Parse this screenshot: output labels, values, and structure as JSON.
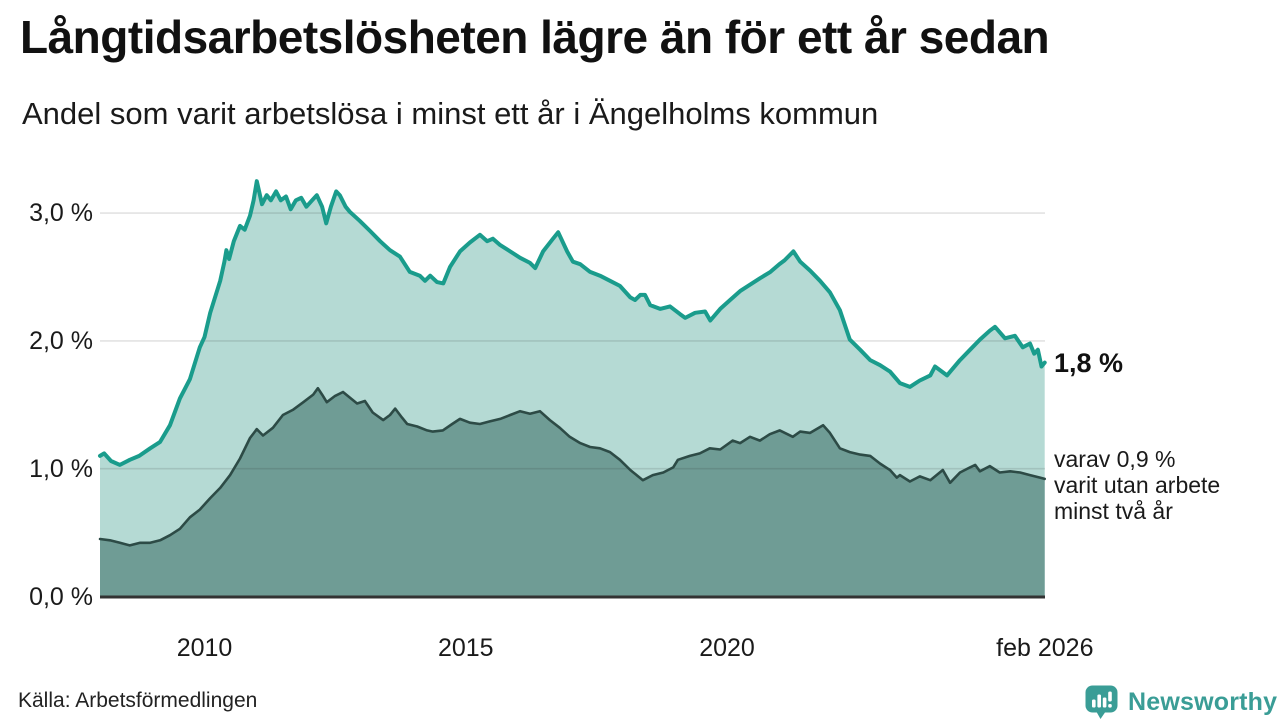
{
  "chart_data": {
    "type": "area",
    "title": "Långtidsarbetslösheten lägre än för ett år sedan",
    "subtitle": "Andel som varit arbetslösa i minst ett år i Ängelholms kommun",
    "source": "Källa: Arbetsförmedlingen",
    "xlabel": "",
    "ylabel": "",
    "grid": true,
    "xlim": [
      2008.0,
      2026.083
    ],
    "ylim": [
      0,
      3.4
    ],
    "x_ticks": [
      {
        "label": "2010",
        "year": 2010
      },
      {
        "label": "2015",
        "year": 2015
      },
      {
        "label": "2020",
        "year": 2020
      },
      {
        "label": "feb 2026",
        "year": 2026.083
      }
    ],
    "y_ticks": [
      {
        "label": "0,0 %",
        "value": 0
      },
      {
        "label": "1,0 %",
        "value": 1
      },
      {
        "label": "2,0 %",
        "value": 2
      },
      {
        "label": "3,0 %",
        "value": 3
      }
    ],
    "annotations": {
      "end_label": "1,8 %",
      "sub_label_lines": [
        "varav 0,9 %",
        "varit utan arbete",
        "minst två år"
      ]
    },
    "series": [
      {
        "name": "Andel arbetslösa minst ett år",
        "line_color": "#1a9c8c",
        "fill_color": "#b5dad4",
        "end_value": "1,8 %",
        "points": [
          [
            2008.0,
            1.1
          ],
          [
            2008.08,
            1.12
          ],
          [
            2008.21,
            1.06
          ],
          [
            2008.38,
            1.03
          ],
          [
            2008.57,
            1.07
          ],
          [
            2008.75,
            1.1
          ],
          [
            2008.96,
            1.16
          ],
          [
            2009.15,
            1.21
          ],
          [
            2009.34,
            1.34
          ],
          [
            2009.53,
            1.55
          ],
          [
            2009.72,
            1.7
          ],
          [
            2009.91,
            1.95
          ],
          [
            2010.0,
            2.03
          ],
          [
            2010.11,
            2.22
          ],
          [
            2010.3,
            2.47
          ],
          [
            2010.38,
            2.62
          ],
          [
            2010.42,
            2.71
          ],
          [
            2010.47,
            2.64
          ],
          [
            2010.56,
            2.78
          ],
          [
            2010.68,
            2.9
          ],
          [
            2010.77,
            2.87
          ],
          [
            2010.87,
            2.98
          ],
          [
            2010.94,
            3.1
          ],
          [
            2011.0,
            3.25
          ],
          [
            2011.1,
            3.07
          ],
          [
            2011.19,
            3.14
          ],
          [
            2011.27,
            3.1
          ],
          [
            2011.37,
            3.17
          ],
          [
            2011.46,
            3.1
          ],
          [
            2011.56,
            3.13
          ],
          [
            2011.65,
            3.03
          ],
          [
            2011.75,
            3.1
          ],
          [
            2011.85,
            3.12
          ],
          [
            2011.95,
            3.05
          ],
          [
            2012.06,
            3.1
          ],
          [
            2012.15,
            3.14
          ],
          [
            2012.25,
            3.05
          ],
          [
            2012.33,
            2.92
          ],
          [
            2012.42,
            3.05
          ],
          [
            2012.52,
            3.17
          ],
          [
            2012.59,
            3.14
          ],
          [
            2012.7,
            3.05
          ],
          [
            2012.78,
            3.01
          ],
          [
            2012.97,
            2.94
          ],
          [
            2013.17,
            2.86
          ],
          [
            2013.36,
            2.78
          ],
          [
            2013.55,
            2.71
          ],
          [
            2013.74,
            2.66
          ],
          [
            2013.93,
            2.54
          ],
          [
            2014.12,
            2.51
          ],
          [
            2014.22,
            2.47
          ],
          [
            2014.32,
            2.51
          ],
          [
            2014.45,
            2.46
          ],
          [
            2014.57,
            2.45
          ],
          [
            2014.7,
            2.58
          ],
          [
            2014.89,
            2.7
          ],
          [
            2015.08,
            2.77
          ],
          [
            2015.27,
            2.83
          ],
          [
            2015.41,
            2.78
          ],
          [
            2015.52,
            2.8
          ],
          [
            2015.66,
            2.75
          ],
          [
            2015.85,
            2.7
          ],
          [
            2016.04,
            2.65
          ],
          [
            2016.23,
            2.61
          ],
          [
            2016.33,
            2.57
          ],
          [
            2016.48,
            2.7
          ],
          [
            2016.67,
            2.8
          ],
          [
            2016.77,
            2.85
          ],
          [
            2016.94,
            2.7
          ],
          [
            2017.05,
            2.62
          ],
          [
            2017.19,
            2.6
          ],
          [
            2017.38,
            2.54
          ],
          [
            2017.57,
            2.51
          ],
          [
            2017.76,
            2.47
          ],
          [
            2017.95,
            2.43
          ],
          [
            2018.15,
            2.34
          ],
          [
            2018.24,
            2.32
          ],
          [
            2018.34,
            2.36
          ],
          [
            2018.43,
            2.36
          ],
          [
            2018.53,
            2.28
          ],
          [
            2018.72,
            2.25
          ],
          [
            2018.91,
            2.27
          ],
          [
            2019.1,
            2.21
          ],
          [
            2019.2,
            2.18
          ],
          [
            2019.39,
            2.22
          ],
          [
            2019.58,
            2.23
          ],
          [
            2019.68,
            2.16
          ],
          [
            2019.87,
            2.25
          ],
          [
            2020.06,
            2.32
          ],
          [
            2020.25,
            2.39
          ],
          [
            2020.44,
            2.44
          ],
          [
            2020.63,
            2.49
          ],
          [
            2020.83,
            2.54
          ],
          [
            2021.0,
            2.6
          ],
          [
            2021.1,
            2.63
          ],
          [
            2021.27,
            2.7
          ],
          [
            2021.4,
            2.62
          ],
          [
            2021.59,
            2.55
          ],
          [
            2021.78,
            2.47
          ],
          [
            2021.97,
            2.38
          ],
          [
            2022.16,
            2.24
          ],
          [
            2022.35,
            2.01
          ],
          [
            2022.55,
            1.93
          ],
          [
            2022.74,
            1.85
          ],
          [
            2022.93,
            1.81
          ],
          [
            2023.12,
            1.76
          ],
          [
            2023.31,
            1.67
          ],
          [
            2023.5,
            1.64
          ],
          [
            2023.69,
            1.69
          ],
          [
            2023.89,
            1.73
          ],
          [
            2023.98,
            1.8
          ],
          [
            2024.21,
            1.73
          ],
          [
            2024.46,
            1.85
          ],
          [
            2024.65,
            1.93
          ],
          [
            2024.84,
            2.01
          ],
          [
            2025.03,
            2.08
          ],
          [
            2025.13,
            2.11
          ],
          [
            2025.32,
            2.02
          ],
          [
            2025.51,
            2.04
          ],
          [
            2025.66,
            1.95
          ],
          [
            2025.8,
            1.98
          ],
          [
            2025.88,
            1.9
          ],
          [
            2025.95,
            1.93
          ],
          [
            2026.02,
            1.8
          ],
          [
            2026.08,
            1.83
          ]
        ]
      },
      {
        "name": "Varav utan arbete minst två år",
        "line_color": "#2d4b46",
        "fill_color": "#6f9c95",
        "end_value": "0,9 %",
        "points": [
          [
            2008.0,
            0.45
          ],
          [
            2008.19,
            0.44
          ],
          [
            2008.38,
            0.42
          ],
          [
            2008.57,
            0.4
          ],
          [
            2008.77,
            0.42
          ],
          [
            2008.96,
            0.42
          ],
          [
            2009.15,
            0.44
          ],
          [
            2009.34,
            0.48
          ],
          [
            2009.53,
            0.53
          ],
          [
            2009.72,
            0.62
          ],
          [
            2009.91,
            0.68
          ],
          [
            2010.11,
            0.77
          ],
          [
            2010.3,
            0.85
          ],
          [
            2010.49,
            0.95
          ],
          [
            2010.68,
            1.08
          ],
          [
            2010.87,
            1.24
          ],
          [
            2011.0,
            1.31
          ],
          [
            2011.12,
            1.26
          ],
          [
            2011.31,
            1.32
          ],
          [
            2011.5,
            1.42
          ],
          [
            2011.69,
            1.46
          ],
          [
            2011.89,
            1.52
          ],
          [
            2012.08,
            1.58
          ],
          [
            2012.17,
            1.63
          ],
          [
            2012.25,
            1.58
          ],
          [
            2012.34,
            1.52
          ],
          [
            2012.5,
            1.57
          ],
          [
            2012.65,
            1.6
          ],
          [
            2012.8,
            1.55
          ],
          [
            2012.92,
            1.51
          ],
          [
            2013.07,
            1.53
          ],
          [
            2013.22,
            1.44
          ],
          [
            2013.42,
            1.38
          ],
          [
            2013.55,
            1.42
          ],
          [
            2013.65,
            1.47
          ],
          [
            2013.78,
            1.4
          ],
          [
            2013.88,
            1.35
          ],
          [
            2014.07,
            1.33
          ],
          [
            2014.26,
            1.3
          ],
          [
            2014.37,
            1.29
          ],
          [
            2014.56,
            1.3
          ],
          [
            2014.74,
            1.35
          ],
          [
            2014.89,
            1.39
          ],
          [
            2015.08,
            1.36
          ],
          [
            2015.27,
            1.35
          ],
          [
            2015.46,
            1.37
          ],
          [
            2015.66,
            1.39
          ],
          [
            2015.85,
            1.42
          ],
          [
            2016.04,
            1.45
          ],
          [
            2016.23,
            1.43
          ],
          [
            2016.42,
            1.45
          ],
          [
            2016.61,
            1.38
          ],
          [
            2016.8,
            1.32
          ],
          [
            2016.99,
            1.25
          ],
          [
            2017.19,
            1.2
          ],
          [
            2017.38,
            1.17
          ],
          [
            2017.57,
            1.16
          ],
          [
            2017.76,
            1.13
          ],
          [
            2017.95,
            1.07
          ],
          [
            2018.15,
            0.99
          ],
          [
            2018.39,
            0.91
          ],
          [
            2018.58,
            0.95
          ],
          [
            2018.78,
            0.97
          ],
          [
            2018.97,
            1.01
          ],
          [
            2019.06,
            1.07
          ],
          [
            2019.29,
            1.1
          ],
          [
            2019.48,
            1.12
          ],
          [
            2019.67,
            1.16
          ],
          [
            2019.87,
            1.15
          ],
          [
            2020.11,
            1.22
          ],
          [
            2020.25,
            1.2
          ],
          [
            2020.44,
            1.25
          ],
          [
            2020.63,
            1.22
          ],
          [
            2020.82,
            1.27
          ],
          [
            2021.01,
            1.3
          ],
          [
            2021.26,
            1.25
          ],
          [
            2021.4,
            1.29
          ],
          [
            2021.59,
            1.28
          ],
          [
            2021.84,
            1.34
          ],
          [
            2021.97,
            1.28
          ],
          [
            2022.16,
            1.16
          ],
          [
            2022.35,
            1.13
          ],
          [
            2022.55,
            1.11
          ],
          [
            2022.74,
            1.1
          ],
          [
            2022.93,
            1.04
          ],
          [
            2023.12,
            0.99
          ],
          [
            2023.25,
            0.93
          ],
          [
            2023.31,
            0.95
          ],
          [
            2023.5,
            0.9
          ],
          [
            2023.69,
            0.94
          ],
          [
            2023.89,
            0.91
          ],
          [
            2024.13,
            0.99
          ],
          [
            2024.27,
            0.89
          ],
          [
            2024.46,
            0.97
          ],
          [
            2024.65,
            1.01
          ],
          [
            2024.75,
            1.03
          ],
          [
            2024.84,
            0.98
          ],
          [
            2025.03,
            1.02
          ],
          [
            2025.22,
            0.97
          ],
          [
            2025.42,
            0.98
          ],
          [
            2025.61,
            0.97
          ],
          [
            2025.8,
            0.95
          ],
          [
            2025.99,
            0.93
          ],
          [
            2026.08,
            0.92
          ]
        ]
      }
    ]
  },
  "footer": {
    "brand": "Newsworthy"
  },
  "colors": {
    "accent_teal": "#1a9c8c",
    "light_fill": "#b5dad4",
    "dark_fill": "#6f9c95",
    "dark_line": "#2d4b46",
    "brand_teal": "#3a9d96",
    "axis": "#333333",
    "gridline": "#e0e0e0"
  }
}
